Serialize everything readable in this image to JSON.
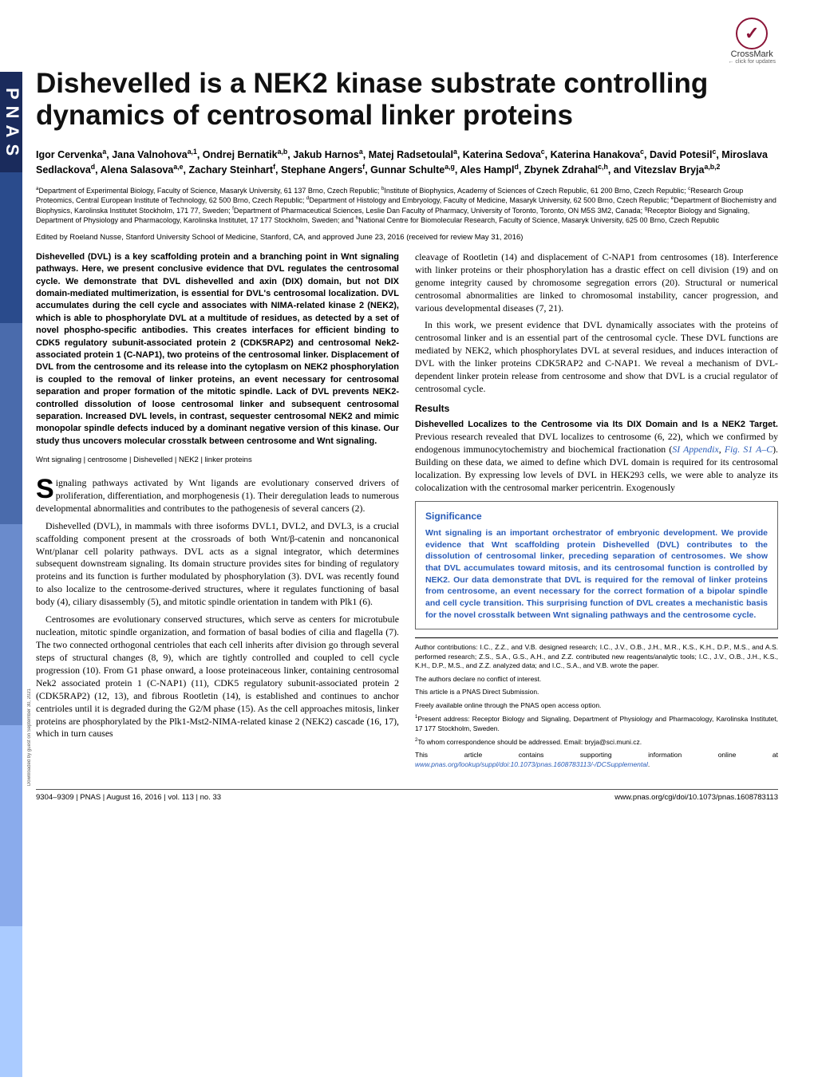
{
  "crossmark": {
    "label": "CrossMark",
    "sub": "← click for updates",
    "glyph": "✓"
  },
  "title": "Dishevelled is a NEK2 kinase substrate controlling dynamics of centrosomal linker proteins",
  "authors_html": "Igor Cervenka<sup>a</sup>, Jana Valnohova<sup>a,1</sup>, Ondrej Bernatik<sup>a,b</sup>, Jakub Harnos<sup>a</sup>, Matej Radsetoulal<sup>a</sup>, Katerina Sedova<sup>c</sup>, Katerina Hanakova<sup>c</sup>, David Potesil<sup>c</sup>, Miroslava Sedlackova<sup>d</sup>, Alena Salasova<sup>a,e</sup>, Zachary Steinhart<sup>f</sup>, Stephane Angers<sup>f</sup>, Gunnar Schulte<sup>a,g</sup>, Ales Hampl<sup>d</sup>, Zbynek Zdrahal<sup>c,h</sup>, and Vitezslav Bryja<sup>a,b,2</sup>",
  "affiliations_html": "<sup>a</sup>Department of Experimental Biology, Faculty of Science, Masaryk University, 61 137 Brno, Czech Republic; <sup>b</sup>Institute of Biophysics, Academy of Sciences of Czech Republic, 61 200 Brno, Czech Republic; <sup>c</sup>Research Group Proteomics, Central European Institute of Technology, 62 500 Brno, Czech Republic; <sup>d</sup>Department of Histology and Embryology, Faculty of Medicine, Masaryk University, 62 500 Brno, Czech Republic; <sup>e</sup>Department of Biochemistry and Biophysics, Karolinska Institutet Stockholm, 171 77, Sweden; <sup>f</sup>Department of Pharmaceutical Sciences, Leslie Dan Faculty of Pharmacy, University of Toronto, Toronto, ON M5S 3M2, Canada; <sup>g</sup>Receptor Biology and Signaling, Department of Physiology and Pharmacology, Karolinska Institutet, 17 177 Stockholm, Sweden; and <sup>h</sup>National Centre for Biomolecular Research, Faculty of Science, Masaryk University, 625 00 Brno, Czech Republic",
  "edited": "Edited by Roeland Nusse, Stanford University School of Medicine, Stanford, CA, and approved June 23, 2016 (received for review May 31, 2016)",
  "abstract": "Dishevelled (DVL) is a key scaffolding protein and a branching point in Wnt signaling pathways. Here, we present conclusive evidence that DVL regulates the centrosomal cycle. We demonstrate that DVL dishevelled and axin (DIX) domain, but not DIX domain-mediated multimerization, is essential for DVL's centrosomal localization. DVL accumulates during the cell cycle and associates with NIMA-related kinase 2 (NEK2), which is able to phosphorylate DVL at a multitude of residues, as detected by a set of novel phospho-specific antibodies. This creates interfaces for efficient binding to CDK5 regulatory subunit-associated protein 2 (CDK5RAP2) and centrosomal Nek2-associated protein 1 (C-NAP1), two proteins of the centrosomal linker. Displacement of DVL from the centrosome and its release into the cytoplasm on NEK2 phosphorylation is coupled to the removal of linker proteins, an event necessary for centrosomal separation and proper formation of the mitotic spindle. Lack of DVL prevents NEK2-controlled dissolution of loose centrosomal linker and subsequent centrosomal separation. Increased DVL levels, in contrast, sequester centrosomal NEK2 and mimic monopolar spindle defects induced by a dominant negative version of this kinase. Our study thus uncovers molecular crosstalk between centrosome and Wnt signaling.",
  "keywords": "Wnt signaling | centrosome | Dishevelled | NEK2 | linker proteins",
  "body_left": [
    "Signaling pathways activated by Wnt ligands are evolutionary conserved drivers of proliferation, differentiation, and morphogenesis (1). Their deregulation leads to numerous developmental abnormalities and contributes to the pathogenesis of several cancers (2).",
    "Dishevelled (DVL), in mammals with three isoforms DVL1, DVL2, and DVL3, is a crucial scaffolding component present at the crossroads of both Wnt/β-catenin and noncanonical Wnt/planar cell polarity pathways. DVL acts as a signal integrator, which determines subsequent downstream signaling. Its domain structure provides sites for binding of regulatory proteins and its function is further modulated by phosphorylation (3). DVL was recently found to also localize to the centrosome-derived structures, where it regulates functioning of basal body (4), ciliary disassembly (5), and mitotic spindle orientation in tandem with Plk1 (6).",
    "Centrosomes are evolutionary conserved structures, which serve as centers for microtubule nucleation, mitotic spindle organization, and formation of basal bodies of cilia and flagella (7). The two connected orthogonal centrioles that each cell inherits after division go through several steps of structural changes (8, 9), which are tightly controlled and coupled to cell cycle progression (10). From G1 phase onward, a loose proteinaceous linker, containing centrosomal Nek2 associated protein 1 (C-NAP1) (11), CDK5 regulatory subunit-associated protein 2 (CDK5RAP2) (12, 13), and fibrous Rootletin (14), is established and continues to anchor centrioles until it is degraded during the G2/M phase (15). As the cell approaches mitosis, linker proteins are phosphorylated by the Plk1-Mst2-NIMA-related kinase 2 (NEK2) cascade (16, 17), which in turn causes"
  ],
  "body_right_top": [
    "cleavage of Rootletin (14) and displacement of C-NAP1 from centrosomes (18). Interference with linker proteins or their phosphorylation has a drastic effect on cell division (19) and on genome integrity caused by chromosome segregation errors (20). Structural or numerical centrosomal abnormalities are linked to chromosomal instability, cancer progression, and various developmental diseases (7, 21).",
    "In this work, we present evidence that DVL dynamically associates with the proteins of centrosomal linker and is an essential part of the centrosomal cycle. These DVL functions are mediated by NEK2, which phosphorylates DVL at several residues, and induces interaction of DVL with the linker proteins CDK5RAP2 and C-NAP1. We reveal a mechanism of DVL-dependent linker protein release from centrosome and show that DVL is a crucial regulator of centrosomal cycle."
  ],
  "results_heading": "Results",
  "results_sub": "Dishevelled Localizes to the Centrosome via Its DIX Domain and Is a NEK2 Target.",
  "results_text_html": " Previous research revealed that DVL localizes to centrosome (6, 22), which we confirmed by endogenous immunocytochemistry and biochemical fractionation (<span class=\"link\">SI Appendix</span>, <span class=\"link\">Fig. S1 A–C</span>). Building on these data, we aimed to define which DVL domain is required for its centrosomal localization. By expressing low levels of DVL in HEK293 cells, we were able to analyze its colocalization with the centrosomal marker pericentrin. Exogenously",
  "significance": {
    "title": "Significance",
    "body": "Wnt signaling is an important orchestrator of embryonic development. We provide evidence that Wnt scaffolding protein Dishevelled (DVL) contributes to the dissolution of centrosomal linker, preceding separation of centrosomes. We show that DVL accumulates toward mitosis, and its centrosomal function is controlled by NEK2. Our data demonstrate that DVL is required for the removal of linker proteins from centrosome, an event necessary for the correct formation of a bipolar spindle and cell cycle transition. This surprising function of DVL creates a mechanistic basis for the novel crosstalk between Wnt signaling pathways and the centrosome cycle."
  },
  "notes": [
    "Author contributions: I.C., Z.Z., and V.B. designed research; I.C., J.V., O.B., J.H., M.R., K.S., K.H., D.P., M.S., and A.S. performed research; Z.S., S.A., G.S., A.H., and Z.Z. contributed new reagents/analytic tools; I.C., J.V., O.B., J.H., K.S., K.H., D.P., M.S., and Z.Z. analyzed data; and I.C., S.A., and V.B. wrote the paper.",
    "The authors declare no conflict of interest.",
    "This article is a PNAS Direct Submission.",
    "Freely available online through the PNAS open access option."
  ],
  "footnote1": "<sup>1</sup>Present address: Receptor Biology and Signaling, Department of Physiology and Pharmacology, Karolinska Institutet, 17 177 Stockholm, Sweden.",
  "footnote2": "<sup>2</sup>To whom correspondence should be addressed. Email: bryja@sci.muni.cz.",
  "si_note_html": "This article contains supporting information online at <span class=\"link\">www.pnas.org/lookup/suppl/doi:10.1073/pnas.1608783113/-/DCSupplemental</span>.",
  "footer_left": "9304–9309  |  PNAS  |  August 16, 2016  |  vol. 113  |  no. 33",
  "footer_right": "www.pnas.org/cgi/doi/10.1073/pnas.1608783113",
  "download_note": "Downloaded by guest on September 30, 2021",
  "pnas_stripe": "PNAS"
}
